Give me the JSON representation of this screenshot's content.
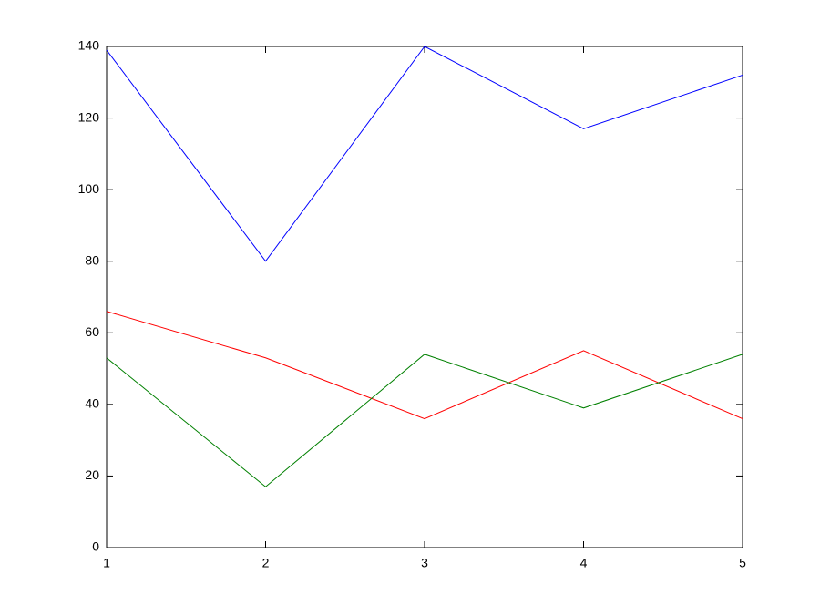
{
  "chart_data": {
    "type": "line",
    "x": [
      1,
      2,
      3,
      4,
      5
    ],
    "series": [
      {
        "color": "#0000ff",
        "values": [
          139,
          80,
          140,
          117,
          132
        ]
      },
      {
        "color": "#ff0000",
        "values": [
          66,
          53,
          36,
          55,
          36
        ]
      },
      {
        "color": "#008000",
        "values": [
          53,
          17,
          54,
          39,
          54
        ]
      }
    ],
    "xlim": [
      1,
      5
    ],
    "xticks": [
      1,
      2,
      3,
      4,
      5
    ],
    "ylim": [
      0,
      140
    ],
    "yticks": [
      0,
      20,
      40,
      60,
      80,
      100,
      120,
      140
    ],
    "grid": false
  }
}
